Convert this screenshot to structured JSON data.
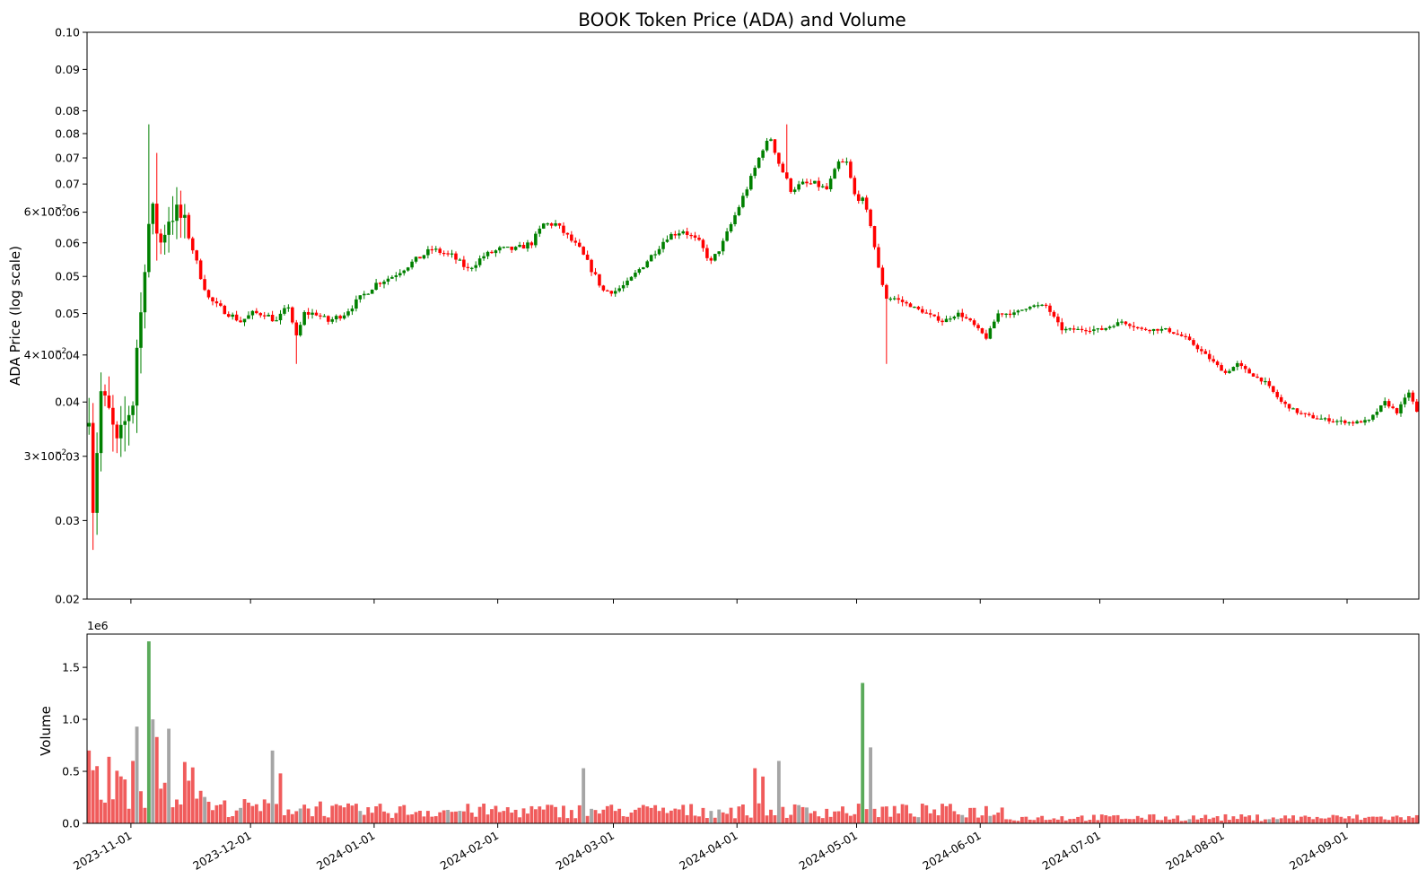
{
  "chart_data": {
    "type": "candlestick-with-volume",
    "title": "BOOK Token Price (ADA) and Volume",
    "price_panel": {
      "ylabel": "ADA Price (log scale)",
      "scale": "log",
      "ylim": [
        0.02,
        0.1
      ],
      "major_tick_labels": [
        {
          "value": 0.02,
          "label": "0.02"
        },
        {
          "value": 0.025,
          "label": "0.03"
        },
        {
          "value": 0.03,
          "label": "0.03"
        },
        {
          "value": 0.035,
          "label": "0.04"
        },
        {
          "value": 0.04,
          "label": "0.04"
        },
        {
          "value": 0.045,
          "label": "0.05"
        },
        {
          "value": 0.05,
          "label": "0.05"
        },
        {
          "value": 0.055,
          "label": "0.06"
        },
        {
          "value": 0.06,
          "label": "0.06"
        },
        {
          "value": 0.065,
          "label": "0.07"
        },
        {
          "value": 0.07,
          "label": "0.07"
        },
        {
          "value": 0.075,
          "label": "0.08"
        },
        {
          "value": 0.08,
          "label": "0.08"
        },
        {
          "value": 0.09,
          "label": "0.09"
        },
        {
          "value": 0.1,
          "label": "0.10"
        }
      ],
      "sci_tick_labels": [
        {
          "value": 0.03,
          "mantissa": "3",
          "exponent": "−2"
        },
        {
          "value": 0.04,
          "mantissa": "4",
          "exponent": "−2"
        },
        {
          "value": 0.06,
          "mantissa": "6",
          "exponent": "−2"
        }
      ],
      "candle_colors": {
        "up": "#008000",
        "down": "#ff0000"
      }
    },
    "volume_panel": {
      "ylabel": "Volume",
      "offset_label": "1e6",
      "ylim": [
        0,
        1820000
      ],
      "tick_labels": [
        {
          "value": 0,
          "label": "0.0"
        },
        {
          "value": 500000,
          "label": "0.5"
        },
        {
          "value": 1000000,
          "label": "1.0"
        },
        {
          "value": 1500000,
          "label": "1.5"
        }
      ],
      "bar_colors": {
        "up": "#5aaa5a",
        "down": "#f05c5c",
        "neutral": "#a5a5a5"
      }
    },
    "x_axis": {
      "type": "date",
      "range": [
        "2023-10-21",
        "2024-09-18"
      ],
      "tick_labels": [
        "2023-11-01",
        "2023-12-01",
        "2024-01-01",
        "2024-02-01",
        "2024-03-01",
        "2024-04-01",
        "2024-05-01",
        "2024-06-01",
        "2024-07-01",
        "2024-08-01",
        "2024-09-01"
      ]
    },
    "close_path": [
      [
        "2023-10-21",
        0.034
      ],
      [
        "2023-10-22",
        0.026
      ],
      [
        "2023-10-24",
        0.036
      ],
      [
        "2023-10-26",
        0.034
      ],
      [
        "2023-10-28",
        0.031
      ],
      [
        "2023-10-30",
        0.033
      ],
      [
        "2023-11-01",
        0.035
      ],
      [
        "2023-11-02",
        0.041
      ],
      [
        "2023-11-03",
        0.045
      ],
      [
        "2023-11-04",
        0.052
      ],
      [
        "2023-11-05",
        0.058
      ],
      [
        "2023-11-06",
        0.06
      ],
      [
        "2023-11-07",
        0.057
      ],
      [
        "2023-11-08",
        0.055
      ],
      [
        "2023-11-09",
        0.057
      ],
      [
        "2023-11-10",
        0.059
      ],
      [
        "2023-11-12",
        0.06
      ],
      [
        "2023-11-14",
        0.058
      ],
      [
        "2023-11-16",
        0.054
      ],
      [
        "2023-11-18",
        0.05
      ],
      [
        "2023-11-20",
        0.047
      ],
      [
        "2023-11-22",
        0.046
      ],
      [
        "2023-11-25",
        0.045
      ],
      [
        "2023-11-28",
        0.044
      ],
      [
        "2023-12-01",
        0.045
      ],
      [
        "2023-12-04",
        0.045
      ],
      [
        "2023-12-07",
        0.044
      ],
      [
        "2023-12-10",
        0.046
      ],
      [
        "2023-12-12",
        0.042
      ],
      [
        "2023-12-14",
        0.045
      ],
      [
        "2023-12-17",
        0.045
      ],
      [
        "2023-12-20",
        0.044
      ],
      [
        "2023-12-24",
        0.045
      ],
      [
        "2023-12-28",
        0.047
      ],
      [
        "2024-01-01",
        0.049
      ],
      [
        "2024-01-05",
        0.05
      ],
      [
        "2024-01-10",
        0.052
      ],
      [
        "2024-01-15",
        0.054
      ],
      [
        "2024-01-20",
        0.053
      ],
      [
        "2024-01-24",
        0.051
      ],
      [
        "2024-01-28",
        0.053
      ],
      [
        "2024-02-01",
        0.054
      ],
      [
        "2024-02-05",
        0.054
      ],
      [
        "2024-02-09",
        0.055
      ],
      [
        "2024-02-12",
        0.058
      ],
      [
        "2024-02-15",
        0.058
      ],
      [
        "2024-02-18",
        0.056
      ],
      [
        "2024-02-21",
        0.054
      ],
      [
        "2024-02-24",
        0.051
      ],
      [
        "2024-02-27",
        0.048
      ],
      [
        "2024-03-01",
        0.048
      ],
      [
        "2024-03-04",
        0.049
      ],
      [
        "2024-03-07",
        0.051
      ],
      [
        "2024-03-10",
        0.053
      ],
      [
        "2024-03-14",
        0.056
      ],
      [
        "2024-03-18",
        0.057
      ],
      [
        "2024-03-22",
        0.055
      ],
      [
        "2024-03-25",
        0.052
      ],
      [
        "2024-03-28",
        0.055
      ],
      [
        "2024-04-01",
        0.061
      ],
      [
        "2024-04-04",
        0.066
      ],
      [
        "2024-04-07",
        0.072
      ],
      [
        "2024-04-09",
        0.074
      ],
      [
        "2024-04-11",
        0.069
      ],
      [
        "2024-04-14",
        0.064
      ],
      [
        "2024-04-17",
        0.065
      ],
      [
        "2024-04-20",
        0.065
      ],
      [
        "2024-04-23",
        0.064
      ],
      [
        "2024-04-26",
        0.069
      ],
      [
        "2024-04-28",
        0.069
      ],
      [
        "2024-04-30",
        0.063
      ],
      [
        "2024-05-02",
        0.062
      ],
      [
        "2024-05-04",
        0.058
      ],
      [
        "2024-05-06",
        0.051
      ],
      [
        "2024-05-08",
        0.047
      ],
      [
        "2024-05-10",
        0.047
      ],
      [
        "2024-05-14",
        0.046
      ],
      [
        "2024-05-18",
        0.045
      ],
      [
        "2024-05-22",
        0.044
      ],
      [
        "2024-05-26",
        0.045
      ],
      [
        "2024-05-29",
        0.044
      ],
      [
        "2024-06-02",
        0.042
      ],
      [
        "2024-06-05",
        0.045
      ],
      [
        "2024-06-09",
        0.045
      ],
      [
        "2024-06-13",
        0.046
      ],
      [
        "2024-06-17",
        0.046
      ],
      [
        "2024-06-21",
        0.043
      ],
      [
        "2024-06-25",
        0.043
      ],
      [
        "2024-07-01",
        0.043
      ],
      [
        "2024-07-06",
        0.044
      ],
      [
        "2024-07-11",
        0.043
      ],
      [
        "2024-07-17",
        0.043
      ],
      [
        "2024-07-22",
        0.042
      ],
      [
        "2024-07-27",
        0.04
      ],
      [
        "2024-08-01",
        0.038
      ],
      [
        "2024-08-04",
        0.039
      ],
      [
        "2024-08-07",
        0.038
      ],
      [
        "2024-08-11",
        0.037
      ],
      [
        "2024-08-15",
        0.035
      ],
      [
        "2024-08-19",
        0.034
      ],
      [
        "2024-08-23",
        0.0335
      ],
      [
        "2024-08-28",
        0.0332
      ],
      [
        "2024-09-02",
        0.033
      ],
      [
        "2024-09-06",
        0.0332
      ],
      [
        "2024-09-10",
        0.035
      ],
      [
        "2024-09-13",
        0.034
      ],
      [
        "2024-09-16",
        0.036
      ],
      [
        "2024-09-18",
        0.034
      ]
    ],
    "wick_extremes": [
      [
        "2023-10-22",
        0.023
      ],
      [
        "2023-11-05",
        0.077
      ],
      [
        "2023-11-07",
        0.071
      ],
      [
        "2023-12-12",
        0.039
      ],
      [
        "2024-04-13",
        0.077
      ],
      [
        "2024-05-08",
        0.039
      ]
    ],
    "volume_spikes": [
      [
        "2023-10-21",
        700000,
        "down"
      ],
      [
        "2023-10-23",
        550000,
        "down"
      ],
      [
        "2023-10-26",
        640000,
        "down"
      ],
      [
        "2023-11-01",
        600000,
        "down"
      ],
      [
        "2023-11-02",
        930000,
        "neutral"
      ],
      [
        "2023-11-05",
        1750000,
        "up"
      ],
      [
        "2023-11-06",
        1000000,
        "neutral"
      ],
      [
        "2023-11-07",
        830000,
        "down"
      ],
      [
        "2023-11-10",
        910000,
        "neutral"
      ],
      [
        "2023-11-14",
        590000,
        "down"
      ],
      [
        "2023-12-06",
        700000,
        "neutral"
      ],
      [
        "2023-12-08",
        480000,
        "down"
      ],
      [
        "2024-02-22",
        530000,
        "neutral"
      ],
      [
        "2024-04-05",
        530000,
        "down"
      ],
      [
        "2024-04-07",
        450000,
        "down"
      ],
      [
        "2024-04-11",
        600000,
        "neutral"
      ],
      [
        "2024-05-02",
        1350000,
        "up"
      ],
      [
        "2024-05-04",
        730000,
        "neutral"
      ]
    ]
  }
}
